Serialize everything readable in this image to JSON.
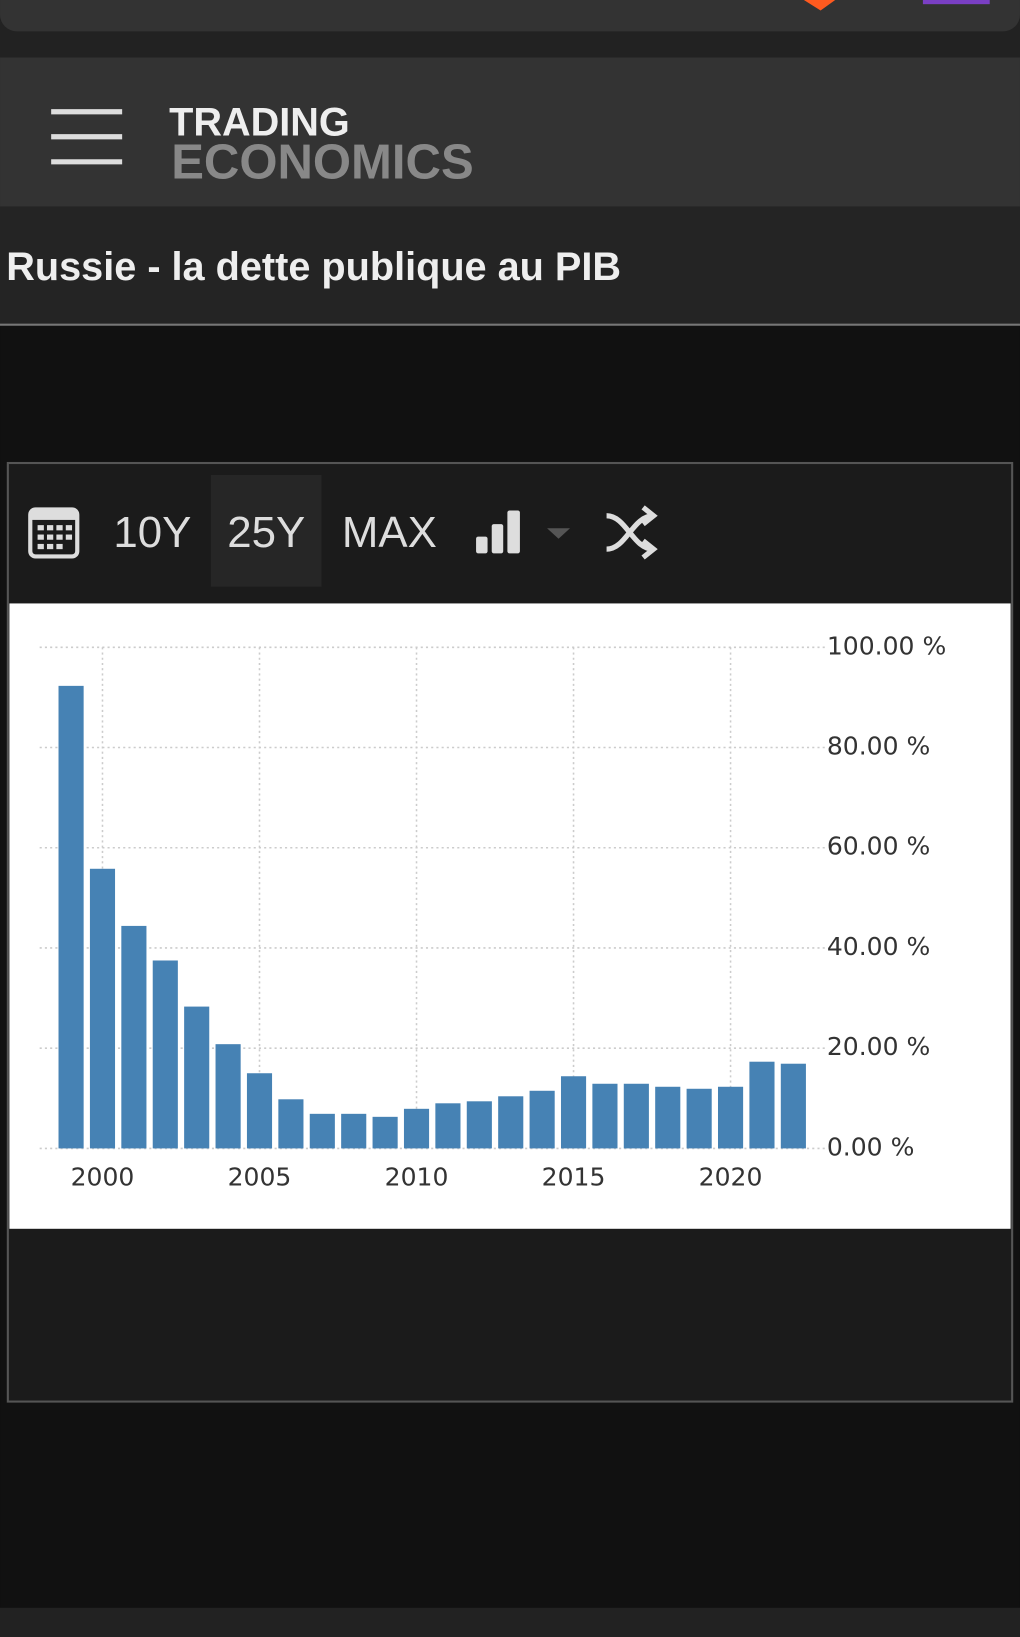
{
  "header": {
    "logo_top": "TRADING",
    "logo_bottom": "ECONOMICS"
  },
  "page_title": "Russie - la dette publique au PIB",
  "toolbar": {
    "buttons": [
      "10Y",
      "25Y",
      "MAX"
    ]
  },
  "chart_data": {
    "type": "bar",
    "x": [
      1999,
      2000,
      2001,
      2002,
      2003,
      2004,
      2005,
      2006,
      2007,
      2008,
      2009,
      2010,
      2011,
      2012,
      2013,
      2014,
      2015,
      2016,
      2017,
      2018,
      2019,
      2020,
      2021,
      2022
    ],
    "values": [
      92.3,
      55.8,
      44.4,
      37.5,
      28.3,
      20.8,
      15,
      9.8,
      6.9,
      6.9,
      6.3,
      7.9,
      9,
      9.4,
      10.4,
      11.5,
      14.4,
      12.9,
      12.9,
      12.3,
      11.9,
      12.3,
      17.3,
      16.9
    ],
    "color": "#4682b4",
    "xlim": [
      1998,
      2023
    ],
    "xticks": [
      2000,
      2005,
      2010,
      2015,
      2020
    ],
    "ylim": [
      0,
      100
    ],
    "yticks": [
      {
        "value": 0,
        "label": "0.00 %"
      },
      {
        "value": 20,
        "label": "20.00 %"
      },
      {
        "value": 40,
        "label": "40.00 %"
      },
      {
        "value": 60,
        "label": "60.00 %"
      },
      {
        "value": 80,
        "label": "80.00 %"
      },
      {
        "value": 100,
        "label": "100.00 %"
      }
    ],
    "grid": true
  }
}
